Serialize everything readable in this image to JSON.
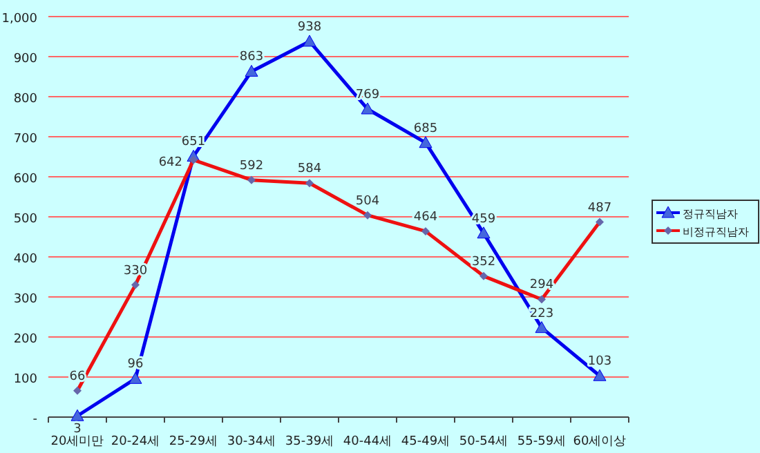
{
  "chart_data": {
    "type": "line",
    "categories": [
      "20세미만",
      "20-24세",
      "25-29세",
      "30-34세",
      "35-39세",
      "40-44세",
      "45-49세",
      "50-54세",
      "55-59세",
      "60세이상"
    ],
    "series": [
      {
        "name": "정규직남자",
        "color": "#0000ee",
        "marker": "triangle",
        "values": [
          3,
          96,
          651,
          863,
          938,
          769,
          685,
          459,
          223,
          103
        ]
      },
      {
        "name": "비정규직남자",
        "color": "#ee1111",
        "marker": "diamond",
        "values": [
          66,
          330,
          642,
          592,
          584,
          504,
          464,
          352,
          294,
          487
        ]
      }
    ],
    "ylim": [
      0,
      1000
    ],
    "yticks": [
      {
        "value": 0,
        "label": "-"
      },
      100,
      200,
      300,
      400,
      500,
      600,
      700,
      800,
      900,
      {
        "value": 1000,
        "label": "1,000"
      }
    ],
    "grid": "y",
    "legend": "right",
    "data_labels": true
  }
}
